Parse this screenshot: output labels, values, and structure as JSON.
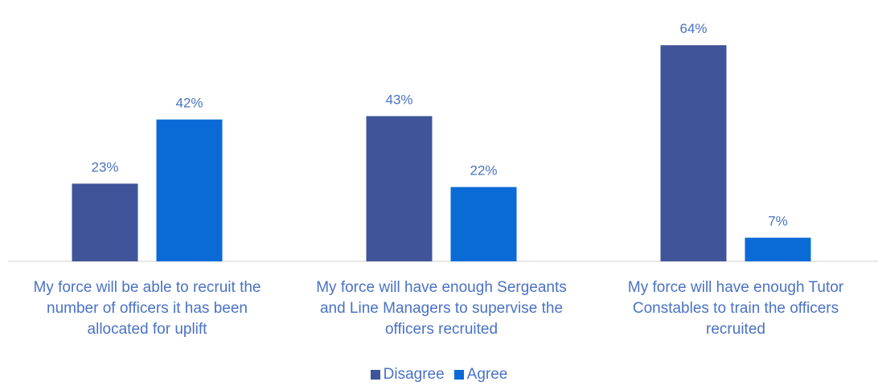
{
  "chart_data": {
    "type": "bar",
    "categories": [
      "My force will be able to recruit the number of officers it has been allocated for uplift",
      "My force will have enough Sergeants and Line Managers to supervise the officers recruited",
      "My force will have enough Tutor Constables to train the officers recruited"
    ],
    "category_lines": [
      [
        "My force will be able to recruit the",
        "number of officers it has been",
        "allocated for uplift"
      ],
      [
        "My force will have enough Sergeants",
        "and Line Managers to supervise the",
        "officers recruited"
      ],
      [
        "My force will have enough Tutor",
        "Constables to train the officers",
        "recruited"
      ]
    ],
    "series": [
      {
        "name": "Disagree",
        "values": [
          23,
          43,
          64
        ],
        "labels": [
          "23%",
          "43%",
          "64%"
        ],
        "color": "#3f5499"
      },
      {
        "name": "Agree",
        "values": [
          42,
          22,
          7
        ],
        "labels": [
          "42%",
          "22%",
          "7%"
        ],
        "color": "#0b6bd6"
      }
    ],
    "value_label_color": "#4a72c4",
    "ylim": [
      0,
      70
    ],
    "legend_position": "bottom",
    "grid": false
  }
}
